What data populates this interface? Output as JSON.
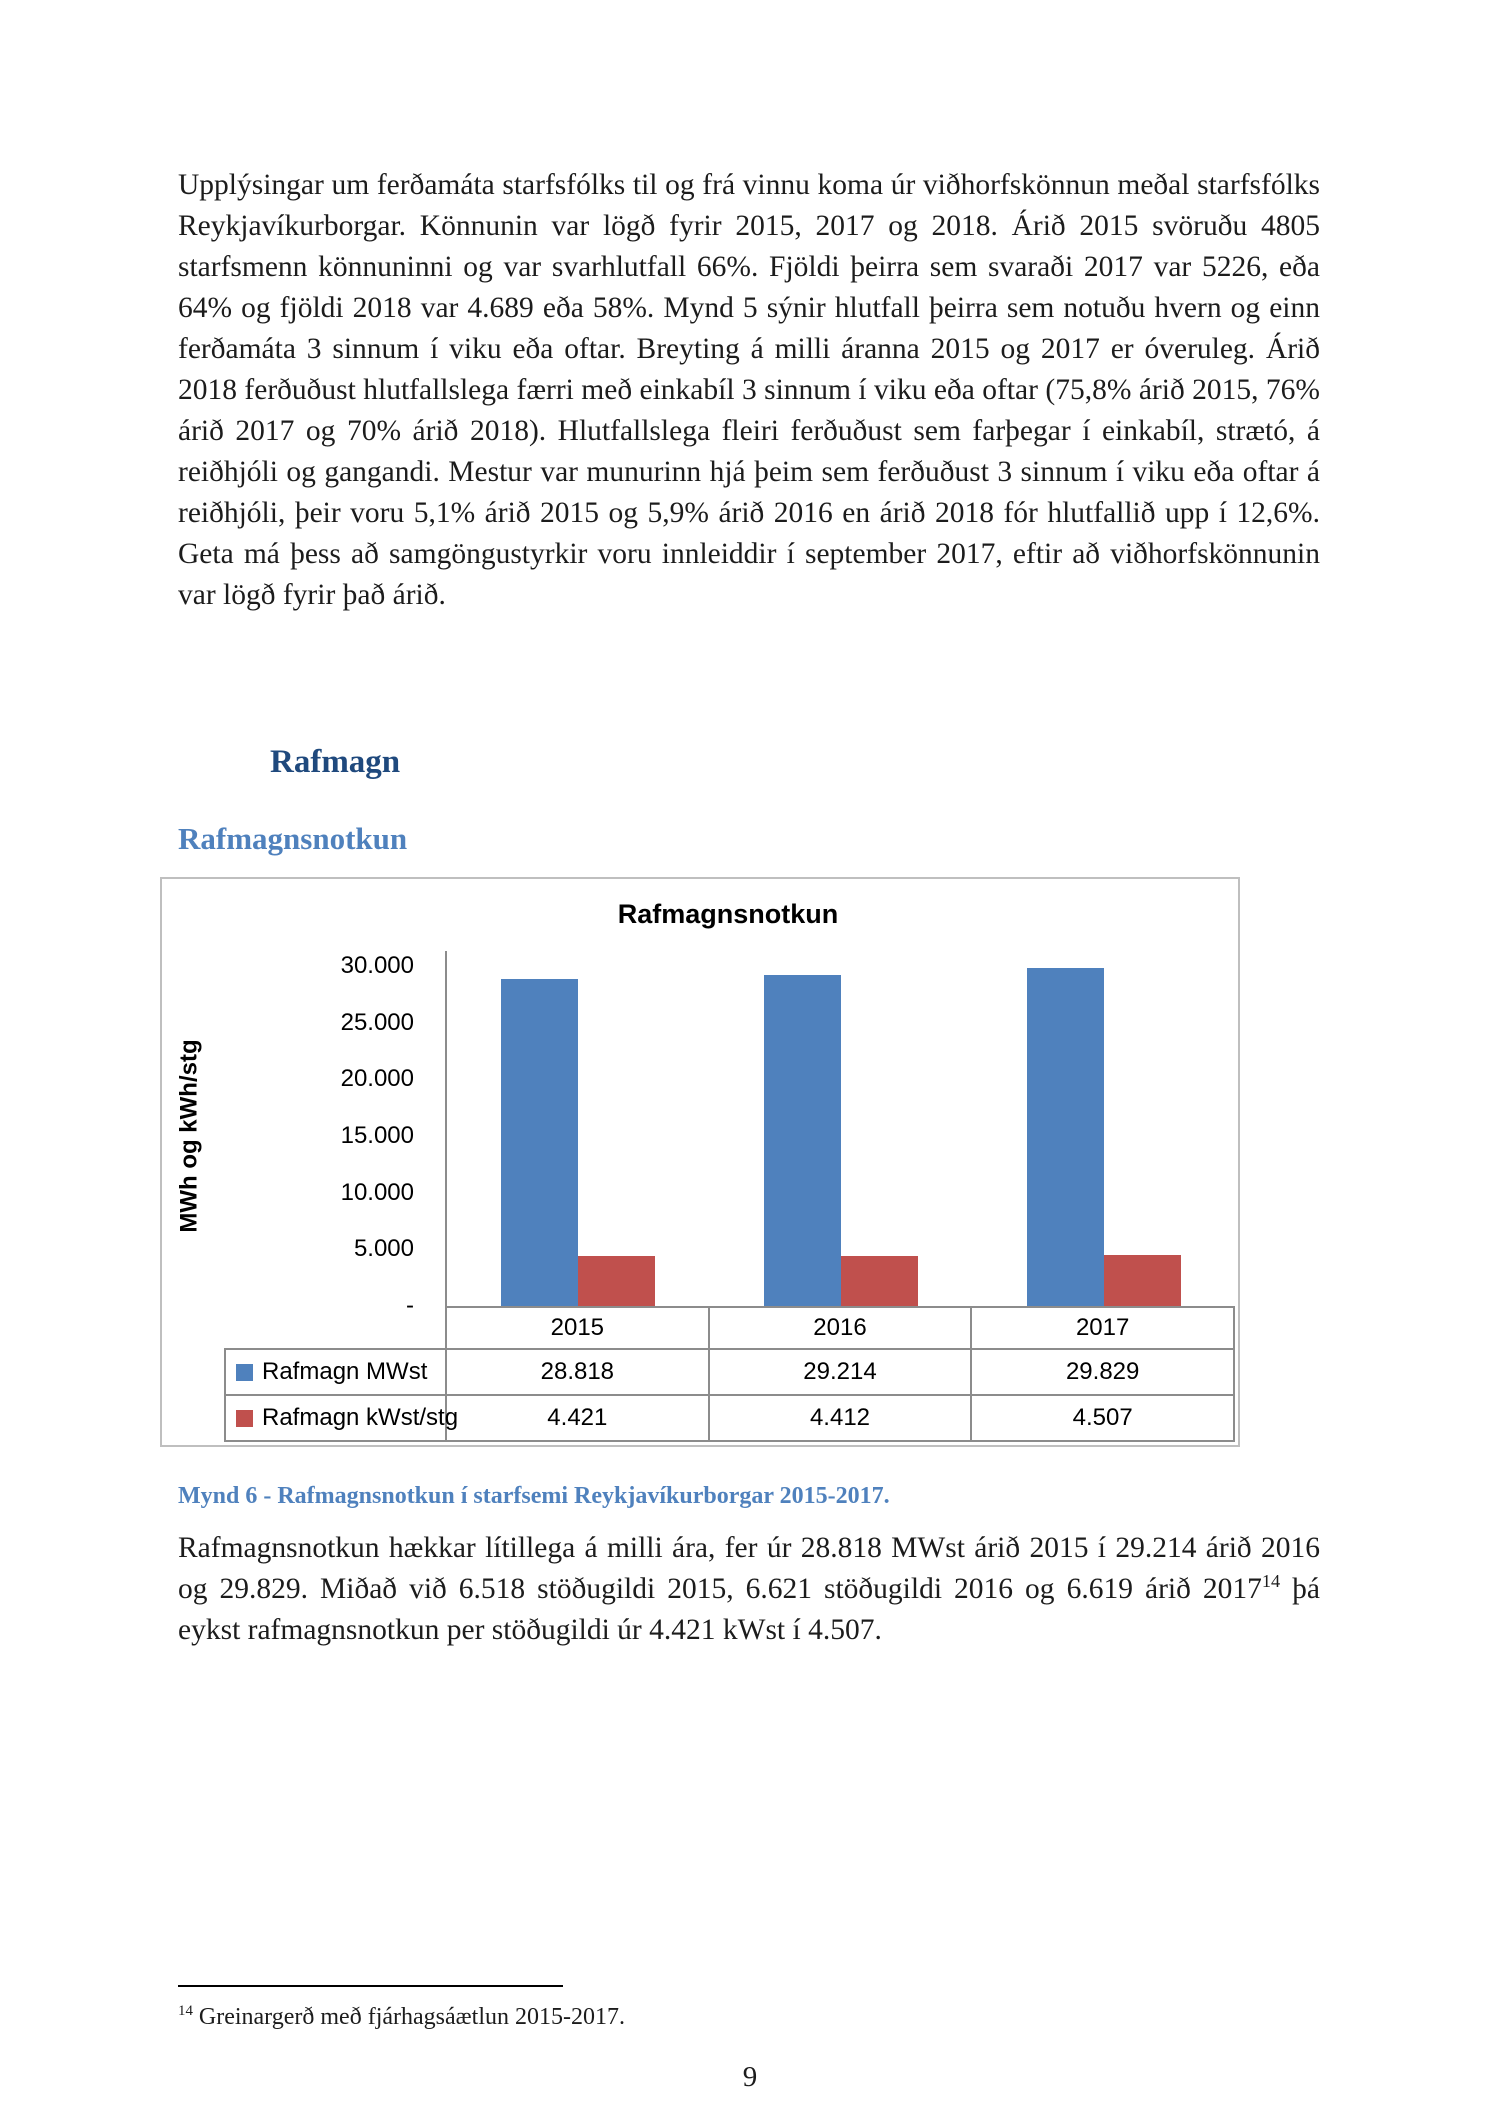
{
  "page_number": "9",
  "colors": {
    "section_heading": "#1f497d",
    "accent_blue": "#4f81bd",
    "bar_red": "#c0504d"
  },
  "body": {
    "paragraph1": "Upplýsingar um ferðamáta starfsfólks til og frá vinnu koma úr viðhorfskönnun meðal starfsfólks Reykjavíkurborgar. Könnunin var lögð fyrir 2015, 2017 og 2018. Árið 2015 svöruðu 4805 starfsmenn könnuninni og var svarhlutfall 66%. Fjöldi þeirra sem svaraði 2017 var 5226, eða 64% og fjöldi 2018 var 4.689 eða 58%. Mynd 5 sýnir hlutfall þeirra sem notuðu hvern og einn ferðamáta 3 sinnum í viku eða oftar. Breyting á milli áranna 2015 og 2017 er óveruleg. Árið 2018 ferðuðust hlutfallslega færri með einkabíl 3 sinnum í viku eða oftar (75,8% árið 2015, 76% árið 2017 og 70% árið 2018). Hlutfallslega fleiri ferðuðust sem farþegar í einkabíl, strætó, á reiðhjóli og gangandi. Mestur var munurinn hjá þeim sem ferðuðust 3 sinnum í viku eða oftar á reiðhjóli, þeir voru 5,1% árið 2015 og 5,9% árið 2016 en árið 2018 fór hlutfallið upp í 12,6%. Geta má þess að samgöngustyrkir voru innleiddir í september 2017, eftir að viðhorfskönnunin var lögð fyrir það árið.",
    "section_heading": "Rafmagn",
    "subsection_heading": "Rafmagnsnotkun",
    "figure_caption": "Mynd 6 - Rafmagnsnotkun í starfsemi Reykjavíkurborgar 2015-2017.",
    "paragraph2_before_sup": "Rafmagnsnotkun hækkar lítillega á milli ára, fer úr 28.818 MWst árið 2015 í 29.214 árið 2016 og 29.829. Miðað við 6.518 stöðugildi 2015, 6.621 stöðugildi 2016 og 6.619 árið 2017",
    "paragraph2_sup": "14",
    "paragraph2_after_sup": " þá eykst rafmagnsnotkun per stöðugildi úr 4.421 kWst í 4.507.",
    "footnote_marker": "14",
    "footnote_text": " Greinargerð með fjárhagsáætlun 2015-2017."
  },
  "chart_data": {
    "type": "bar",
    "title": "Rafmagnsnotkun",
    "ylabel": "MWh og kWh/stg",
    "xlabel": "",
    "categories": [
      "2015",
      "2016",
      "2017"
    ],
    "series": [
      {
        "name": "Rafmagn MWst",
        "color": "#4f81bd",
        "values": [
          28818,
          29214,
          29829
        ],
        "labels": [
          "28.818",
          "29.214",
          "29.829"
        ]
      },
      {
        "name": "Rafmagn kWst/stg",
        "color": "#c0504d",
        "values": [
          4421,
          4412,
          4507
        ],
        "labels": [
          "4.421",
          "4.412",
          "4.507"
        ]
      }
    ],
    "ylim": [
      0,
      30000
    ],
    "yticks": [
      "30.000",
      "25.000",
      "20.000",
      "15.000",
      "10.000",
      "5.000",
      "-"
    ],
    "grid": false,
    "legend_position": "table-below"
  }
}
